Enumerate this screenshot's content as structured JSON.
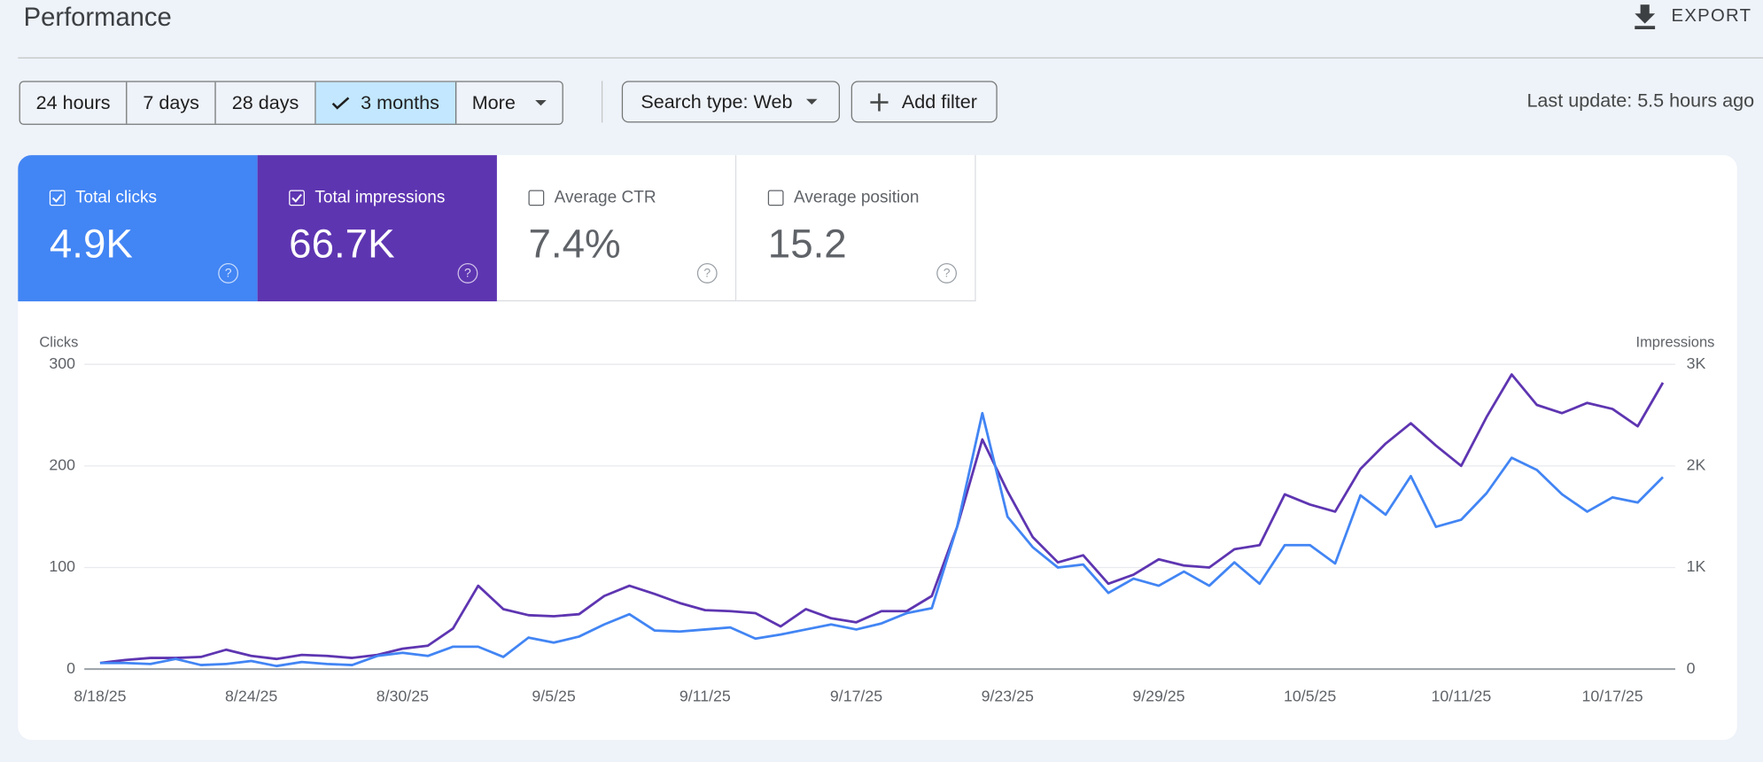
{
  "header": {
    "title": "Performance",
    "export": "EXPORT"
  },
  "filters": {
    "ranges": [
      {
        "label": "24 hours",
        "selected": false
      },
      {
        "label": "7 days",
        "selected": false
      },
      {
        "label": "28 days",
        "selected": false
      },
      {
        "label": "3 months",
        "selected": true
      },
      {
        "label": "More",
        "selected": false
      }
    ],
    "search_type": "Search type: Web",
    "add_filter": "Add filter",
    "last_update": "Last update: 5.5 hours ago"
  },
  "metrics": [
    {
      "label": "Total clicks",
      "value": "4.9K",
      "selected": true,
      "color": "#4285f4"
    },
    {
      "label": "Total impressions",
      "value": "66.7K",
      "selected": true,
      "color": "#5e35b1"
    },
    {
      "label": "Average CTR",
      "value": "7.4%",
      "selected": false,
      "color": "#00897b"
    },
    {
      "label": "Average position",
      "value": "15.2",
      "selected": false,
      "color": "#e8710a"
    }
  ],
  "chart_data": {
    "type": "line",
    "y_label": "Clicks",
    "y2_label": "Impressions",
    "categories": [
      "8/18/25",
      null,
      null,
      null,
      null,
      null,
      "8/24/25",
      null,
      null,
      null,
      null,
      null,
      "8/30/25",
      null,
      null,
      null,
      null,
      null,
      "9/5/25",
      null,
      null,
      null,
      null,
      null,
      "9/11/25",
      null,
      null,
      null,
      null,
      null,
      "9/17/25",
      null,
      null,
      null,
      null,
      null,
      "9/23/25",
      null,
      null,
      null,
      null,
      null,
      "9/29/25",
      null,
      null,
      null,
      null,
      null,
      "10/5/25",
      null,
      null,
      null,
      null,
      null,
      "10/11/25",
      null,
      null,
      null,
      null,
      null,
      "10/17/25",
      null,
      null
    ],
    "series": [
      {
        "name": "Clicks",
        "color": "#4285f4",
        "values": [
          6,
          6,
          5,
          10,
          4,
          5,
          8,
          3,
          7,
          5,
          4,
          13,
          16,
          13,
          22,
          22,
          12,
          31,
          26,
          32,
          44,
          54,
          38,
          37,
          39,
          41,
          30,
          34,
          39,
          44,
          39,
          45,
          55,
          60,
          140,
          252,
          150,
          120,
          100,
          103,
          75,
          89,
          82,
          96,
          82,
          105,
          84,
          122,
          122,
          104,
          171,
          152,
          190,
          140,
          147,
          173,
          208,
          196,
          172,
          155,
          169,
          164,
          189
        ]
      },
      {
        "name": "Impressions",
        "color": "#5e35b1",
        "axis": "y2",
        "values": [
          60,
          90,
          110,
          110,
          120,
          190,
          130,
          100,
          140,
          130,
          110,
          140,
          200,
          230,
          400,
          820,
          590,
          530,
          520,
          540,
          720,
          820,
          740,
          650,
          580,
          570,
          550,
          420,
          590,
          500,
          460,
          570,
          570,
          720,
          1400,
          2260,
          1750,
          1300,
          1050,
          1120,
          840,
          930,
          1080,
          1020,
          1000,
          1180,
          1220,
          1720,
          1620,
          1550,
          1970,
          2220,
          2420,
          2200,
          2000,
          2480,
          2900,
          2600,
          2520,
          2620,
          2560,
          2390,
          2820
        ]
      }
    ],
    "ylim": [
      0,
      300
    ],
    "yticks": [
      0,
      100,
      200,
      300
    ],
    "y2lim": [
      0,
      3000
    ],
    "y2ticks": [
      0,
      {
        "value": 1000,
        "label": "1K"
      },
      {
        "value": 2000,
        "label": "2K"
      },
      {
        "value": 3000,
        "label": "3K"
      }
    ],
    "grid": true
  }
}
